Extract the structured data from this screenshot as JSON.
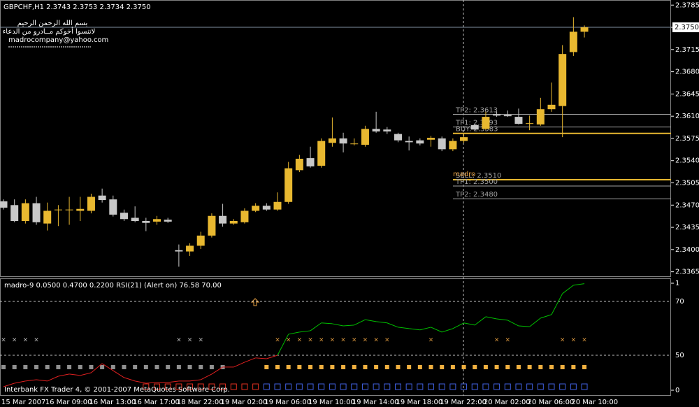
{
  "window_title": "GBPCHF,H1  2.3743 2.3753 2.3734 2.3750",
  "notes": [
    "بسم الله الرحمن الرحيم",
    "لاتنسوا أخوكم مــادرو من الدعاء",
    "madrocompany@yahoo.com"
  ],
  "copyright": "Interbank FX Trader 4, © 2001-2007 MetaQuotes Software Corp.",
  "chart_data": [
    {
      "type": "candlestick",
      "categories": [
        "15 Mar 2007",
        null,
        null,
        null,
        "16 Mar 09:00",
        null,
        null,
        null,
        "16 Mar 13:00",
        null,
        null,
        null,
        "16 Mar 17:00",
        null,
        null,
        null,
        "18 Mar 22:00",
        null,
        null,
        null,
        "19 Mar 02:00",
        null,
        null,
        null,
        "19 Mar 06:00",
        null,
        null,
        null,
        "19 Mar 10:00",
        null,
        null,
        null,
        "19 Mar 14:00",
        null,
        null,
        null,
        "19 Mar 18:00",
        null,
        null,
        null,
        "19 Mar 22:00",
        null,
        null,
        null,
        "20 Mar 02:00",
        null,
        null,
        null,
        "20 Mar 06:00",
        null,
        null,
        null,
        "20 Mar 10:00",
        null
      ],
      "open": [
        2.3476,
        2.347,
        2.3445,
        2.3473,
        2.3441,
        2.3462,
        2.3462,
        2.3461,
        2.3461,
        2.3485,
        2.3479,
        2.3458,
        2.345,
        2.3445,
        2.3444,
        2.3447,
        2.3399,
        2.3397,
        2.3406,
        2.3422,
        2.3453,
        2.3441,
        2.3443,
        2.3461,
        2.3469,
        2.3463,
        2.3475,
        2.3525,
        2.3544,
        2.3532,
        2.3568,
        2.3575,
        2.3566,
        2.3565,
        2.359,
        2.3589,
        2.3582,
        2.3571,
        2.3572,
        2.3573,
        2.3575,
        2.3558,
        2.3571,
        2.3596,
        2.359,
        2.3613,
        2.3612,
        2.3609,
        2.3598,
        2.3597,
        2.3621,
        2.3626,
        2.3711,
        2.3743
      ],
      "high": [
        2.3479,
        2.3479,
        2.3479,
        2.3483,
        2.3474,
        2.347,
        2.3483,
        2.3483,
        2.3488,
        2.3496,
        2.3485,
        2.3463,
        2.3468,
        2.345,
        2.3453,
        2.345,
        2.3408,
        2.341,
        2.3428,
        2.3457,
        2.3472,
        2.3448,
        2.3465,
        2.3473,
        2.3473,
        2.349,
        2.3538,
        2.3549,
        2.3562,
        2.3575,
        2.3608,
        2.3584,
        2.3575,
        2.3595,
        2.3617,
        2.3593,
        2.3584,
        2.3578,
        2.3575,
        2.3579,
        2.3578,
        2.3575,
        2.3582,
        2.3598,
        2.3617,
        2.3617,
        2.3619,
        2.3622,
        2.3611,
        2.3639,
        2.3663,
        2.3722,
        2.3766,
        2.3753
      ],
      "low": [
        2.3463,
        2.3443,
        2.3441,
        2.3439,
        2.343,
        2.3437,
        2.3439,
        2.3445,
        2.3457,
        2.3474,
        2.3452,
        2.3445,
        2.3443,
        2.3429,
        2.3439,
        2.3442,
        2.3373,
        2.339,
        2.3401,
        2.3419,
        2.3436,
        2.3439,
        2.3441,
        2.3459,
        2.3461,
        2.3461,
        2.3472,
        2.3522,
        2.3529,
        2.3529,
        2.3562,
        2.3553,
        2.3564,
        2.3562,
        2.3584,
        2.3582,
        2.3569,
        2.3556,
        2.3564,
        2.3562,
        2.3555,
        2.3555,
        2.3568,
        2.3587,
        2.3588,
        2.3609,
        2.3609,
        2.3597,
        2.3588,
        2.3595,
        2.3617,
        2.3577,
        2.3705,
        2.3734
      ],
      "close": [
        2.3466,
        2.3445,
        2.3473,
        2.3443,
        2.3461,
        2.3463,
        2.3463,
        2.3464,
        2.3483,
        2.3478,
        2.3455,
        2.3448,
        2.3445,
        2.3442,
        2.3448,
        2.3444,
        2.3397,
        2.3406,
        2.3422,
        2.3453,
        2.3441,
        2.3445,
        2.3461,
        2.3469,
        2.3463,
        2.3475,
        2.3528,
        2.3543,
        2.3531,
        2.3571,
        2.3575,
        2.3567,
        2.3567,
        2.359,
        2.3586,
        2.3586,
        2.3572,
        2.3569,
        2.3567,
        2.3576,
        2.3558,
        2.3571,
        2.3577,
        2.3589,
        2.3609,
        2.3611,
        2.361,
        2.3598,
        2.3599,
        2.3621,
        2.3628,
        2.3708,
        2.3743,
        2.375
      ],
      "up_color": "#e8b830",
      "down_color": "#c8c8c8",
      "ylim": [
        2.3358,
        2.3793
      ],
      "yticks": [
        2.3785,
        {
          "value": 2.375,
          "label": "2.3750"
        },
        2.3715,
        {
          "value": 2.368,
          "label": "2.3680"
        },
        2.3645,
        {
          "value": 2.361,
          "label": "2.3610"
        },
        2.3575,
        {
          "value": 2.354,
          "label": "2.3540"
        },
        2.3505,
        {
          "value": 2.347,
          "label": "2.3470"
        },
        2.3435,
        {
          "value": 2.34,
          "label": "2.3400"
        },
        2.3365
      ],
      "current_price": {
        "value": 2.375,
        "label": "2.3750"
      },
      "indicator_label": "madro",
      "levels": [
        {
          "label": "TP2: 2.3613",
          "value": 2.3613,
          "color": "#a0a0a0"
        },
        {
          "label": "TP1: 2.3593",
          "value": 2.3593,
          "color": "#a0a0a0"
        },
        {
          "label": "BUY: 2.3583",
          "value": 2.3583,
          "color": "#e8b830"
        },
        {
          "label": "SELL: 2.3510",
          "value": 2.351,
          "color": "#e8b830"
        },
        {
          "label": "TP1: 2.3500",
          "value": 2.35,
          "color": "#a0a0a0"
        },
        {
          "label": "TP2: 2.3480",
          "value": 2.348,
          "color": "#a0a0a0"
        }
      ]
    },
    {
      "type": "line",
      "title": "madro-9 0.0500 0.4700 0.2200  RSI(21) (Alert on) 76.58 70.00",
      "ylim": [
        0,
        1
      ],
      "yticks": [
        0,
        1
      ],
      "y2lim": [
        37,
        76.75
      ],
      "y2ticks": [
        50,
        70
      ],
      "series": [
        {
          "axis": "y2",
          "color": "#00c000",
          "below_color": "#e02020",
          "values": [
            38.3,
            39.6,
            40.4,
            40.9,
            40.4,
            42.2,
            43.0,
            42.5,
            43.5,
            46.9,
            44.3,
            41.7,
            40.4,
            39.6,
            39.9,
            39.9,
            40.4,
            40.4,
            40.9,
            43.0,
            45.6,
            45.6,
            47.4,
            49.0,
            48.7,
            50.0,
            57.8,
            58.6,
            59.1,
            62.0,
            61.7,
            60.9,
            61.2,
            63.2,
            62.5,
            62.0,
            60.4,
            59.9,
            59.4,
            60.4,
            58.6,
            59.9,
            62.0,
            61.2,
            64.3,
            63.5,
            63.0,
            60.9,
            60.6,
            63.8,
            65.1,
            72.9,
            76.0,
            76.58
          ]
        }
      ]
    }
  ]
}
